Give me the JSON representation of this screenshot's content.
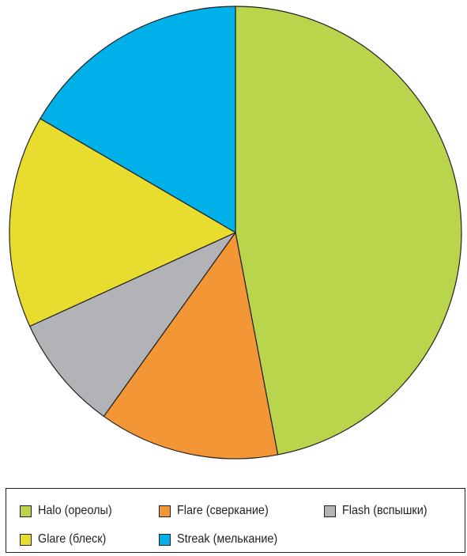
{
  "chart_data": {
    "type": "pie",
    "slices": [
      {
        "label": "Halo (ореолы)",
        "value": 47.0,
        "color": "#b8d54c"
      },
      {
        "label": "Flare (сверкание)",
        "value": 12.9,
        "color": "#f39636"
      },
      {
        "label": "Flash (вспышки)",
        "value": 8.3,
        "color": "#b1b3b6"
      },
      {
        "label": "Glare (блеск)",
        "value": 15.2,
        "color": "#e8dd2f"
      },
      {
        "label": "Streak (мелькание)",
        "value": 16.6,
        "color": "#00b0e8"
      }
    ],
    "start_angle_deg": 0,
    "direction": "clockwise",
    "legend_position": "bottom"
  },
  "legend": {
    "items": [
      {
        "label": "Halo (ореолы)",
        "color": "#b8d54c"
      },
      {
        "label": "Flare (сверкание)",
        "color": "#f39636"
      },
      {
        "label": "Flash (вспышки)",
        "color": "#b1b3b6"
      },
      {
        "label": "Glare (блеск)",
        "color": "#e8dd2f"
      },
      {
        "label": "Streak (мелькание)",
        "color": "#00b0e8"
      }
    ]
  }
}
